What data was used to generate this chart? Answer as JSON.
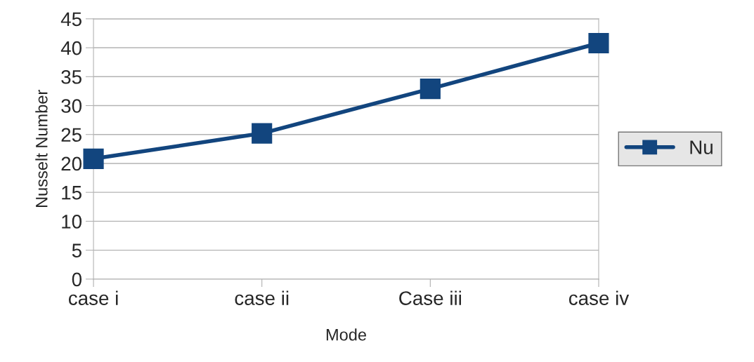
{
  "chart_data": {
    "type": "line",
    "xlabel": "Mode",
    "ylabel": "Nusselt Number",
    "categories": [
      "case i",
      "case ii",
      "Case iii",
      "case iv"
    ],
    "series": [
      {
        "name": "Nu",
        "color": "#12457e",
        "values": [
          20.8,
          25.2,
          32.9,
          40.8
        ]
      }
    ],
    "ylim": [
      0,
      45
    ],
    "yticks": [
      0,
      5,
      10,
      15,
      20,
      25,
      30,
      35,
      40,
      45
    ],
    "grid": "y",
    "legend": "right",
    "marker": "square",
    "line_style": "solid"
  }
}
